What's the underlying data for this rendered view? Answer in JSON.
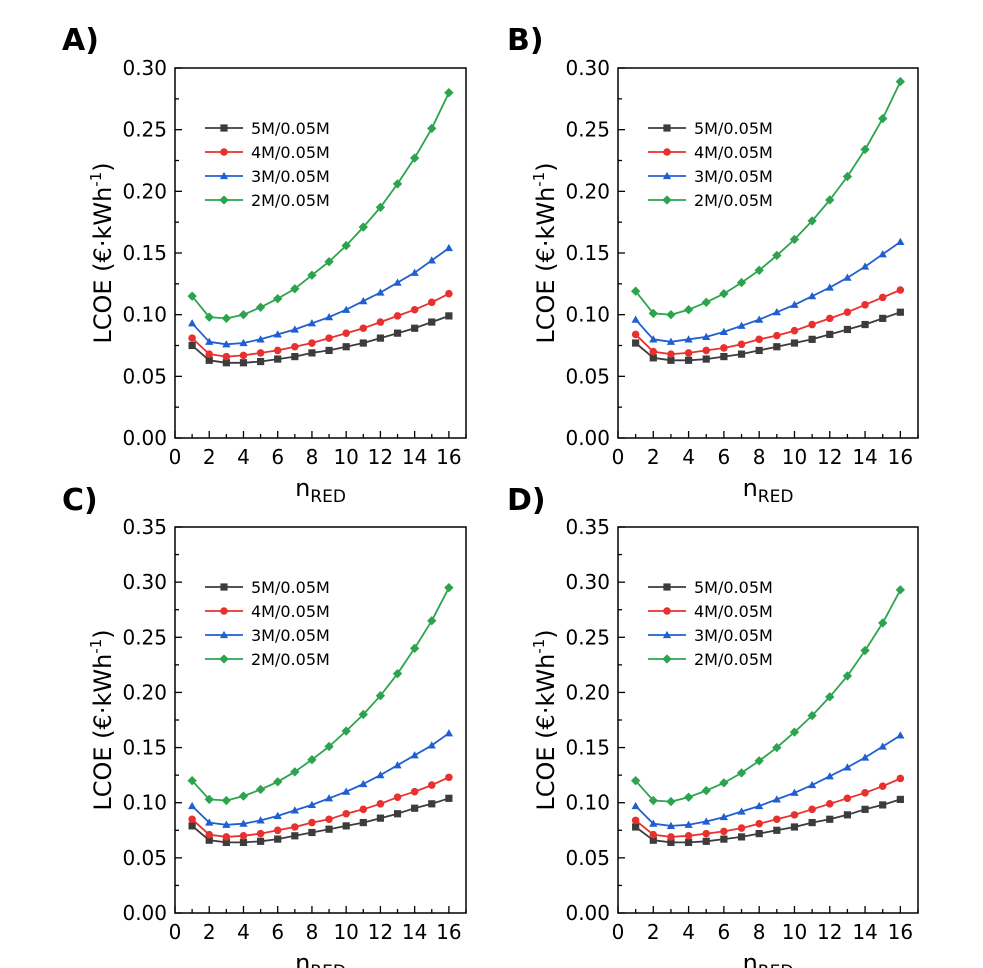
{
  "chart_data": [
    {
      "type": "line",
      "panel_label": "A)",
      "xlabel": "n",
      "xlabel_sub": "RED",
      "ylabel": "LCOE (€·kWh",
      "ylabel_sup": "-1",
      "ylabel_close": ")",
      "xlim": [
        0,
        17
      ],
      "ylim": [
        0,
        0.3
      ],
      "xticks": [
        0,
        2,
        4,
        6,
        8,
        10,
        12,
        14,
        16
      ],
      "yticks": [
        0.0,
        0.05,
        0.1,
        0.15,
        0.2,
        0.25,
        0.3
      ],
      "yticks_text": [
        "0.00",
        "0.05",
        "0.10",
        "0.15",
        "0.20",
        "0.25",
        "0.30"
      ],
      "legend_position": "top-left",
      "grid": false,
      "x": [
        1,
        2,
        3,
        4,
        5,
        6,
        7,
        8,
        9,
        10,
        11,
        12,
        13,
        14,
        15,
        16
      ],
      "series": [
        {
          "name": "5M/0.05M",
          "color": "#3c3c3c",
          "marker": "square",
          "values": [
            0.075,
            0.063,
            0.061,
            0.061,
            0.062,
            0.064,
            0.066,
            0.069,
            0.071,
            0.074,
            0.077,
            0.081,
            0.085,
            0.089,
            0.094,
            0.099
          ]
        },
        {
          "name": "4M/0.05M",
          "color": "#e8312f",
          "marker": "circle",
          "values": [
            0.081,
            0.068,
            0.066,
            0.067,
            0.069,
            0.071,
            0.074,
            0.077,
            0.081,
            0.085,
            0.089,
            0.094,
            0.099,
            0.104,
            0.11,
            0.117
          ]
        },
        {
          "name": "3M/0.05M",
          "color": "#1f5fd0",
          "marker": "triangle",
          "values": [
            0.093,
            0.078,
            0.076,
            0.077,
            0.08,
            0.084,
            0.088,
            0.093,
            0.098,
            0.104,
            0.111,
            0.118,
            0.126,
            0.134,
            0.144,
            0.154
          ]
        },
        {
          "name": "2M/0.05M",
          "color": "#2ca44e",
          "marker": "diamond",
          "values": [
            0.115,
            0.098,
            0.097,
            0.1,
            0.106,
            0.113,
            0.121,
            0.132,
            0.143,
            0.156,
            0.171,
            0.187,
            0.206,
            0.227,
            0.251,
            0.28
          ]
        }
      ]
    },
    {
      "type": "line",
      "panel_label": "B)",
      "xlabel": "n",
      "xlabel_sub": "RED",
      "ylabel": "LCOE (€·kWh",
      "ylabel_sup": "-1",
      "ylabel_close": ")",
      "xlim": [
        0,
        17
      ],
      "ylim": [
        0,
        0.3
      ],
      "xticks": [
        0,
        2,
        4,
        6,
        8,
        10,
        12,
        14,
        16
      ],
      "yticks": [
        0.0,
        0.05,
        0.1,
        0.15,
        0.2,
        0.25,
        0.3
      ],
      "yticks_text": [
        "0.00",
        "0.05",
        "0.10",
        "0.15",
        "0.20",
        "0.25",
        "0.30"
      ],
      "legend_position": "top-left",
      "grid": false,
      "x": [
        1,
        2,
        3,
        4,
        5,
        6,
        7,
        8,
        9,
        10,
        11,
        12,
        13,
        14,
        15,
        16
      ],
      "series": [
        {
          "name": "5M/0.05M",
          "color": "#3c3c3c",
          "marker": "square",
          "values": [
            0.077,
            0.065,
            0.063,
            0.063,
            0.064,
            0.066,
            0.068,
            0.071,
            0.074,
            0.077,
            0.08,
            0.084,
            0.088,
            0.092,
            0.097,
            0.102
          ]
        },
        {
          "name": "4M/0.05M",
          "color": "#e8312f",
          "marker": "circle",
          "values": [
            0.084,
            0.07,
            0.068,
            0.069,
            0.071,
            0.073,
            0.076,
            0.08,
            0.083,
            0.087,
            0.092,
            0.097,
            0.102,
            0.108,
            0.114,
            0.12
          ]
        },
        {
          "name": "3M/0.05M",
          "color": "#1f5fd0",
          "marker": "triangle",
          "values": [
            0.096,
            0.08,
            0.078,
            0.08,
            0.082,
            0.086,
            0.091,
            0.096,
            0.102,
            0.108,
            0.115,
            0.122,
            0.13,
            0.139,
            0.149,
            0.159
          ]
        },
        {
          "name": "2M/0.05M",
          "color": "#2ca44e",
          "marker": "diamond",
          "values": [
            0.119,
            0.101,
            0.1,
            0.104,
            0.11,
            0.117,
            0.126,
            0.136,
            0.148,
            0.161,
            0.176,
            0.193,
            0.212,
            0.234,
            0.259,
            0.289
          ]
        }
      ]
    },
    {
      "type": "line",
      "panel_label": "C)",
      "xlabel": "n",
      "xlabel_sub": "RED",
      "ylabel": "LCOE (€·kWh",
      "ylabel_sup": "-1",
      "ylabel_close": ")",
      "xlim": [
        0,
        17
      ],
      "ylim": [
        0,
        0.35
      ],
      "xticks": [
        0,
        2,
        4,
        6,
        8,
        10,
        12,
        14,
        16
      ],
      "yticks": [
        0.0,
        0.05,
        0.1,
        0.15,
        0.2,
        0.25,
        0.3,
        0.35
      ],
      "yticks_text": [
        "0.00",
        "0.05",
        "0.10",
        "0.15",
        "0.20",
        "0.25",
        "0.30",
        "0.35"
      ],
      "legend_position": "top-left",
      "grid": false,
      "x": [
        1,
        2,
        3,
        4,
        5,
        6,
        7,
        8,
        9,
        10,
        11,
        12,
        13,
        14,
        15,
        16
      ],
      "series": [
        {
          "name": "5M/0.05M",
          "color": "#3c3c3c",
          "marker": "square",
          "values": [
            0.079,
            0.066,
            0.064,
            0.064,
            0.065,
            0.067,
            0.07,
            0.073,
            0.076,
            0.079,
            0.082,
            0.086,
            0.09,
            0.095,
            0.099,
            0.104
          ]
        },
        {
          "name": "4M/0.05M",
          "color": "#e8312f",
          "marker": "circle",
          "values": [
            0.085,
            0.071,
            0.069,
            0.07,
            0.072,
            0.075,
            0.078,
            0.082,
            0.085,
            0.09,
            0.094,
            0.099,
            0.105,
            0.11,
            0.116,
            0.123
          ]
        },
        {
          "name": "3M/0.05M",
          "color": "#1f5fd0",
          "marker": "triangle",
          "values": [
            0.097,
            0.082,
            0.08,
            0.081,
            0.084,
            0.088,
            0.093,
            0.098,
            0.104,
            0.11,
            0.117,
            0.125,
            0.134,
            0.143,
            0.152,
            0.163
          ]
        },
        {
          "name": "2M/0.05M",
          "color": "#2ca44e",
          "marker": "diamond",
          "values": [
            0.12,
            0.103,
            0.102,
            0.106,
            0.112,
            0.119,
            0.128,
            0.139,
            0.151,
            0.165,
            0.18,
            0.197,
            0.217,
            0.24,
            0.265,
            0.295
          ]
        }
      ]
    },
    {
      "type": "line",
      "panel_label": "D)",
      "xlabel": "n",
      "xlabel_sub": "RED",
      "ylabel": "LCOE (€·kWh",
      "ylabel_sup": "-1",
      "ylabel_close": ")",
      "xlim": [
        0,
        17
      ],
      "ylim": [
        0,
        0.35
      ],
      "xticks": [
        0,
        2,
        4,
        6,
        8,
        10,
        12,
        14,
        16
      ],
      "yticks": [
        0.0,
        0.05,
        0.1,
        0.15,
        0.2,
        0.25,
        0.3,
        0.35
      ],
      "yticks_text": [
        "0.00",
        "0.05",
        "0.10",
        "0.15",
        "0.20",
        "0.25",
        "0.30",
        "0.35"
      ],
      "legend_position": "top-left",
      "grid": false,
      "x": [
        1,
        2,
        3,
        4,
        5,
        6,
        7,
        8,
        9,
        10,
        11,
        12,
        13,
        14,
        15,
        16
      ],
      "series": [
        {
          "name": "5M/0.05M",
          "color": "#3c3c3c",
          "marker": "square",
          "values": [
            0.078,
            0.066,
            0.064,
            0.064,
            0.065,
            0.067,
            0.069,
            0.072,
            0.075,
            0.078,
            0.082,
            0.085,
            0.089,
            0.094,
            0.098,
            0.103
          ]
        },
        {
          "name": "4M/0.05M",
          "color": "#e8312f",
          "marker": "circle",
          "values": [
            0.084,
            0.071,
            0.069,
            0.07,
            0.072,
            0.074,
            0.077,
            0.081,
            0.085,
            0.089,
            0.094,
            0.099,
            0.104,
            0.109,
            0.115,
            0.122
          ]
        },
        {
          "name": "3M/0.05M",
          "color": "#1f5fd0",
          "marker": "triangle",
          "values": [
            0.097,
            0.081,
            0.079,
            0.08,
            0.083,
            0.087,
            0.092,
            0.097,
            0.103,
            0.109,
            0.116,
            0.124,
            0.132,
            0.141,
            0.151,
            0.161
          ]
        },
        {
          "name": "2M/0.05M",
          "color": "#2ca44e",
          "marker": "diamond",
          "values": [
            0.12,
            0.102,
            0.101,
            0.105,
            0.111,
            0.118,
            0.127,
            0.138,
            0.15,
            0.164,
            0.179,
            0.196,
            0.215,
            0.238,
            0.263,
            0.293
          ]
        }
      ]
    }
  ]
}
